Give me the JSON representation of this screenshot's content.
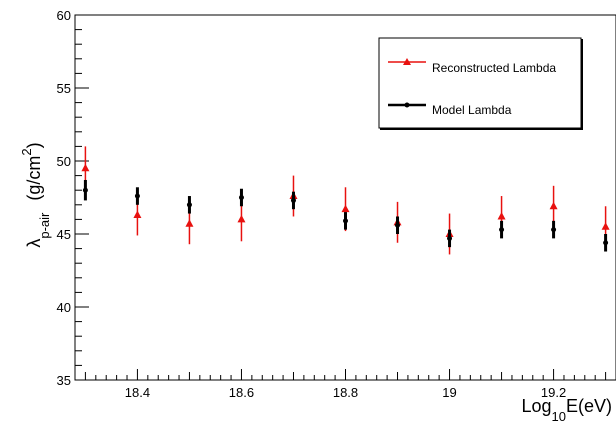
{
  "chart_data": {
    "type": "scatter",
    "title": "",
    "xlabel": {
      "base": "Log",
      "subscript": "10",
      "rest": "E(eV)"
    },
    "ylabel": {
      "symbol": "λ",
      "subscript": "p-air",
      "unit_open": "(g/cm",
      "superscript": "2",
      "unit_close": ")"
    },
    "xlim": [
      18.28,
      19.32
    ],
    "ylim": [
      35,
      60
    ],
    "x_ticks": [
      18.4,
      18.6,
      18.8,
      19,
      19.2
    ],
    "x_tick_labels": [
      "18.4",
      "18.6",
      "18.8",
      "19",
      "19.2"
    ],
    "y_ticks": [
      35,
      40,
      45,
      50,
      55,
      60
    ],
    "y_tick_labels": [
      "35",
      "40",
      "45",
      "50",
      "55",
      "60"
    ],
    "grid": false,
    "legend_position": "top-right",
    "series": [
      {
        "name": "Reconstructed Lambda",
        "color": "#e8110f",
        "marker": "triangle",
        "x": [
          18.3,
          18.4,
          18.5,
          18.6,
          18.7,
          18.8,
          18.9,
          19.0,
          19.1,
          19.2,
          19.3
        ],
        "y": [
          49.5,
          46.3,
          45.7,
          46.0,
          47.6,
          46.7,
          45.8,
          45.0,
          46.2,
          46.9,
          45.5
        ],
        "err": [
          1.5,
          1.4,
          1.4,
          1.5,
          1.4,
          1.5,
          1.4,
          1.4,
          1.4,
          1.4,
          1.4
        ]
      },
      {
        "name": "Model Lambda",
        "color": "#000000",
        "marker": "circle",
        "x": [
          18.3,
          18.4,
          18.5,
          18.6,
          18.7,
          18.8,
          18.9,
          19.0,
          19.1,
          19.2,
          19.3
        ],
        "y": [
          48.0,
          47.6,
          47.0,
          47.5,
          47.3,
          45.9,
          45.6,
          44.7,
          45.3,
          45.3,
          44.4
        ],
        "err": [
          0.7,
          0.6,
          0.6,
          0.6,
          0.6,
          0.6,
          0.6,
          0.6,
          0.6,
          0.6,
          0.6
        ]
      }
    ]
  }
}
